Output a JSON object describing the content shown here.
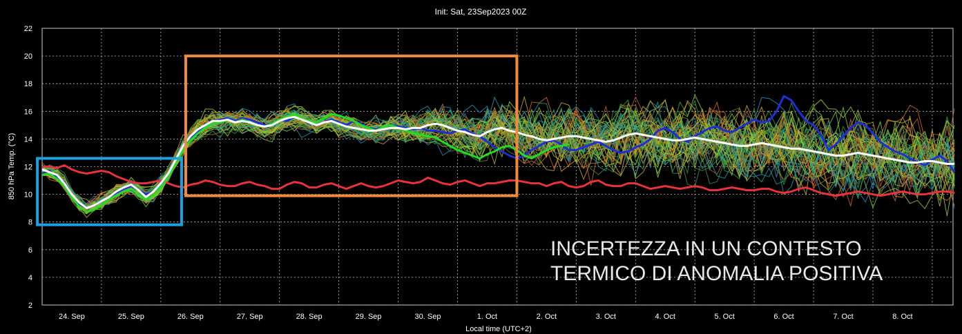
{
  "chart_data": {
    "type": "line",
    "title": "Init: Sat, 23Sep2023 00Z",
    "xlabel": "Local time (UTC+2)",
    "ylabel": "850 hPa Temp. (°C)",
    "ylim": [
      2,
      22
    ],
    "yticks": [
      "2",
      "4",
      "6",
      "8",
      "10",
      "12",
      "14",
      "16",
      "18",
      "20",
      "22"
    ],
    "xlim": [
      0,
      15.35
    ],
    "xticks": [
      {
        "x": 1,
        "label": "24. Sep"
      },
      {
        "x": 2,
        "label": "25. Sep"
      },
      {
        "x": 3,
        "label": "26. Sep"
      },
      {
        "x": 4,
        "label": "27. Sep"
      },
      {
        "x": 5,
        "label": "28. Sep"
      },
      {
        "x": 6,
        "label": "29. Sep"
      },
      {
        "x": 7,
        "label": "30. Sep"
      },
      {
        "x": 8,
        "label": "1. Oct"
      },
      {
        "x": 9,
        "label": "2. Oct"
      },
      {
        "x": 10,
        "label": "3. Oct"
      },
      {
        "x": 11,
        "label": "4. Oct"
      },
      {
        "x": 12,
        "label": "5. Oct"
      },
      {
        "x": 13,
        "label": "6. Oct"
      },
      {
        "x": 14,
        "label": "7. Oct"
      },
      {
        "x": 15,
        "label": "8. Oct"
      }
    ],
    "grid": true,
    "x_spacing": 0.125,
    "series": [
      {
        "color": "#e8323c",
        "values": [
          12.0,
          12.0,
          11.9,
          12.1,
          11.8,
          11.6,
          11.5,
          11.6,
          11.7,
          11.6,
          11.3,
          11.1,
          10.9,
          10.8,
          10.8,
          10.9,
          11.0,
          10.8,
          10.6,
          10.5,
          10.7,
          10.8,
          11.0,
          10.9,
          10.7,
          10.6,
          10.6,
          10.8,
          10.9,
          10.7,
          10.6,
          10.4,
          10.4,
          10.7,
          10.9,
          10.8,
          10.5,
          10.5,
          10.7,
          10.8,
          10.6,
          10.4,
          10.6,
          10.8,
          10.6,
          10.5,
          10.6,
          10.8,
          11.0,
          10.9,
          10.8,
          10.9,
          11.2,
          11.0,
          10.8,
          10.7,
          10.9,
          11.0,
          10.8,
          10.6,
          10.8,
          10.8,
          10.9,
          11.0,
          11.0,
          10.9,
          10.8,
          10.8,
          10.6,
          10.8,
          10.9,
          10.6,
          10.5,
          10.6,
          10.9,
          11.0,
          10.7,
          10.6,
          10.6,
          10.8,
          10.8,
          10.6,
          10.4,
          10.5,
          10.6,
          10.5,
          10.4,
          10.5,
          10.6,
          10.5,
          10.3,
          10.3,
          10.4,
          10.5,
          10.4,
          10.3,
          10.3,
          10.4,
          10.4,
          10.2,
          10.1,
          10.2,
          10.4,
          10.5,
          10.3,
          10.1,
          10.0,
          9.9,
          10.0,
          10.1,
          10.2,
          10.1,
          10.0,
          9.9,
          10.0,
          10.1,
          10.2,
          10.1,
          10.0,
          10.0,
          10.1,
          10.2,
          10.2,
          10.1
        ]
      },
      {
        "color": "#1f2fd6",
        "values": [
          11.5,
          11.7,
          11.2,
          10.9,
          10.0,
          9.3,
          9.0,
          9.2,
          9.5,
          9.8,
          10.1,
          10.4,
          10.6,
          10.3,
          10.0,
          10.2,
          10.8,
          11.5,
          12.5,
          13.5,
          14.0,
          14.6,
          15.0,
          15.3,
          15.4,
          15.5,
          15.3,
          15.5,
          15.4,
          15.2,
          15.0,
          15.1,
          15.4,
          15.3,
          15.6,
          15.5,
          15.2,
          15.0,
          15.2,
          15.4,
          15.2,
          15.0,
          15.3,
          15.1,
          14.8,
          14.7,
          14.9,
          15.0,
          14.9,
          14.8,
          14.7,
          14.8,
          14.6,
          14.6,
          14.5,
          14.4,
          14.6,
          14.7,
          14.4,
          14.2,
          13.8,
          13.4,
          13.1,
          12.8,
          12.6,
          12.8,
          13.2,
          13.5,
          13.8,
          13.9,
          13.6,
          13.2,
          13.2,
          13.4,
          13.6,
          13.8,
          13.5,
          13.2,
          13.0,
          13.1,
          13.4,
          13.6,
          14.0,
          14.6,
          14.8,
          14.5,
          14.0,
          13.8,
          14.2,
          14.5,
          14.8,
          14.9,
          14.6,
          14.5,
          14.8,
          15.1,
          15.4,
          15.2,
          15.3,
          16.0,
          17.1,
          16.8,
          16.0,
          15.3,
          15.0,
          14.3,
          13.2,
          13.6,
          14.2,
          14.8,
          15.2,
          15.0,
          14.4,
          13.8,
          13.4,
          13.1,
          12.9,
          12.6,
          12.3,
          12.1,
          12.5,
          12.8,
          12.4,
          11.6
        ]
      },
      {
        "color": "#22dd22",
        "values": [
          11.4,
          11.5,
          11.1,
          10.6,
          9.8,
          9.1,
          8.7,
          8.9,
          9.2,
          9.6,
          9.9,
          10.2,
          10.4,
          10.0,
          9.6,
          9.9,
          10.5,
          11.2,
          12.2,
          13.2,
          13.9,
          14.4,
          14.8,
          15.1,
          15.2,
          15.4,
          15.2,
          15.4,
          15.2,
          15.0,
          14.9,
          15.1,
          15.4,
          15.6,
          15.8,
          15.5,
          15.3,
          15.2,
          15.5,
          15.8,
          15.7,
          15.5,
          15.3,
          15.0,
          14.8,
          14.6,
          14.9,
          15.0,
          14.8,
          14.6,
          14.4,
          14.3,
          14.2,
          14.1,
          13.8,
          13.5,
          13.2,
          13.0,
          12.8,
          12.6,
          12.9,
          13.1,
          13.4,
          13.5,
          13.2,
          12.8,
          12.6,
          12.9,
          13.2,
          13.4,
          13.5,
          13.6
        ]
      },
      {
        "color": "#ffffff",
        "values": [
          11.8,
          11.6,
          11.4,
          10.8,
          10.0,
          9.4,
          9.0,
          9.2,
          9.5,
          9.8,
          10.2,
          10.5,
          10.7,
          10.3,
          9.8,
          10.2,
          10.8,
          11.5,
          12.5,
          13.5,
          14.2,
          14.7,
          15.0,
          15.3,
          15.3,
          15.4,
          15.2,
          15.3,
          15.2,
          15.0,
          14.9,
          15.0,
          15.3,
          15.5,
          15.6,
          15.4,
          15.2,
          15.0,
          15.2,
          15.3,
          15.1,
          14.9,
          14.8,
          14.7,
          14.6,
          14.6,
          14.7,
          14.8,
          14.8,
          14.7,
          14.8,
          14.8,
          15.0,
          15.1,
          15.0,
          14.8,
          14.6,
          14.5,
          14.3,
          14.2,
          14.5,
          14.7,
          14.8,
          14.6,
          14.5,
          14.3,
          14.2,
          14.0,
          13.9,
          14.0,
          14.1,
          14.2,
          14.2,
          14.1,
          14.0,
          13.9,
          13.8,
          13.9,
          14.1,
          14.3,
          14.4,
          14.3,
          14.2,
          14.1,
          14.0,
          13.9,
          13.9,
          14.0,
          14.1,
          14.0,
          13.9,
          13.8,
          13.7,
          13.6,
          13.5,
          13.5,
          13.6,
          13.7,
          13.6,
          13.5,
          13.4,
          13.3,
          13.3,
          13.2,
          13.1,
          13.0,
          12.9,
          12.8,
          12.8,
          12.9,
          13.0,
          12.9,
          12.8,
          12.7,
          12.6,
          12.5,
          12.4,
          12.3,
          12.3,
          12.4,
          12.4,
          12.3,
          12.2,
          12.2
        ]
      }
    ],
    "ensemble_band": {
      "members": 50,
      "colors": [
        "#2ea34a",
        "#c9a227",
        "#1f8fbf",
        "#d2691e",
        "#7ccc2e",
        "#b8b830",
        "#3d8f3d",
        "#c0602a",
        "#19a0a0",
        "#9acd32"
      ],
      "mean": [
        11.8,
        11.6,
        11.4,
        10.8,
        10.0,
        9.4,
        9.0,
        9.2,
        9.5,
        9.8,
        10.2,
        10.5,
        10.7,
        10.3,
        9.8,
        10.2,
        10.8,
        11.5,
        12.5,
        13.5,
        14.2,
        14.7,
        15.0,
        15.3,
        15.3,
        15.4,
        15.2,
        15.3,
        15.2,
        15.0,
        14.9,
        15.0,
        15.3,
        15.5,
        15.6,
        15.4,
        15.2,
        15.0,
        15.2,
        15.3,
        15.1,
        14.9,
        14.8,
        14.7,
        14.6,
        14.6,
        14.7,
        14.8,
        14.8,
        14.7,
        14.8,
        14.8,
        15.0,
        15.1,
        15.0,
        14.8,
        14.6,
        14.5,
        14.3,
        14.2,
        14.5,
        14.7,
        14.8,
        14.6,
        14.5,
        14.3,
        14.2,
        14.0,
        13.9,
        14.0,
        14.1,
        14.2,
        14.2,
        14.1,
        14.0,
        13.9,
        13.8,
        13.9,
        14.1,
        14.3,
        14.4,
        14.3,
        14.2,
        14.1,
        14.0,
        13.9,
        13.9,
        14.0,
        14.1,
        14.0,
        13.9,
        13.8,
        13.7,
        13.6,
        13.5,
        13.5,
        13.6,
        13.7,
        13.6,
        13.5,
        13.4,
        13.3,
        13.3,
        13.2,
        13.1,
        13.0,
        12.9,
        12.8,
        12.8,
        12.9,
        13.0,
        12.9,
        12.8,
        12.7,
        12.6,
        12.5,
        12.4,
        12.3,
        12.3,
        12.4,
        12.4,
        12.3,
        12.2,
        12.2
      ],
      "spread_start": [
        0.4,
        2.0,
        6.0
      ],
      "spread_end": 8.0
    },
    "boxes": [
      {
        "color": "#1ea0e0",
        "x0": -0.08,
        "x1": 2.35,
        "y0": 7.8,
        "y1": 12.6
      },
      {
        "color": "#f08a3c",
        "x0": 2.42,
        "x1": 8.0,
        "y0": 9.9,
        "y1": 20.0
      }
    ],
    "annotation": [
      "INCERTEZZA IN UN CONTESTO",
      "TERMICO DI ANOMALIA POSITIVA"
    ]
  }
}
